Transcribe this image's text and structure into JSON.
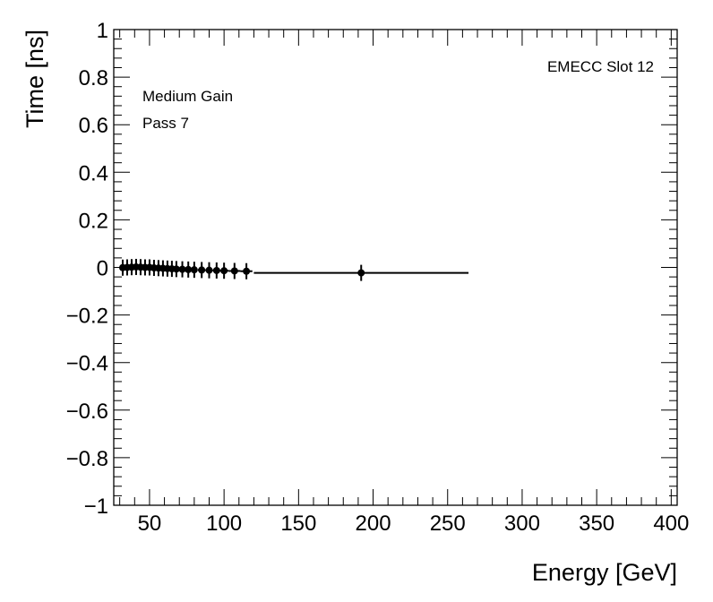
{
  "chart_data": {
    "type": "scatter",
    "title": "",
    "xlabel": "Energy [GeV]",
    "ylabel": "Time [ns]",
    "xlim": [
      26,
      404
    ],
    "ylim": [
      -1,
      1
    ],
    "x_ticks": [
      50,
      100,
      150,
      200,
      250,
      300,
      350,
      400
    ],
    "y_ticks": [
      -1,
      -0.8,
      -0.6,
      -0.4,
      -0.2,
      0,
      0.2,
      0.4,
      0.6,
      0.8,
      1
    ],
    "x_tick_labels": [
      "50",
      "100",
      "150",
      "200",
      "250",
      "300",
      "350",
      "400"
    ],
    "y_tick_labels": [
      "−1",
      "−0.8",
      "−0.6",
      "−0.4",
      "−0.2",
      "0",
      "0.2",
      "0.4",
      "0.6",
      "0.8",
      "1"
    ],
    "annotations": {
      "top_right": "EMECC Slot 12",
      "line1": "Medium Gain",
      "line2": "Pass 7"
    },
    "grid": false,
    "marker_color": "#000000",
    "series": [
      {
        "points": [
          {
            "x": 32,
            "y": -0.001,
            "xerr": 1.5
          },
          {
            "x": 35,
            "y": 0.0,
            "xerr": 1.5
          },
          {
            "x": 38,
            "y": 0.001,
            "xerr": 1.5
          },
          {
            "x": 41,
            "y": 0.002,
            "xerr": 1.5
          },
          {
            "x": 44,
            "y": 0.001,
            "xerr": 1.5
          },
          {
            "x": 47,
            "y": 0.0,
            "xerr": 1.5
          },
          {
            "x": 50,
            "y": 0.0,
            "xerr": 1.5
          },
          {
            "x": 53,
            "y": -0.002,
            "xerr": 1.5
          },
          {
            "x": 56,
            "y": -0.003,
            "xerr": 1.5
          },
          {
            "x": 59,
            "y": -0.004,
            "xerr": 1.5
          },
          {
            "x": 62,
            "y": -0.005,
            "xerr": 1.5
          },
          {
            "x": 65,
            "y": -0.006,
            "xerr": 1.5
          },
          {
            "x": 68,
            "y": -0.007,
            "xerr": 2
          },
          {
            "x": 72,
            "y": -0.008,
            "xerr": 2
          },
          {
            "x": 76,
            "y": -0.009,
            "xerr": 2
          },
          {
            "x": 80,
            "y": -0.01,
            "xerr": 2
          },
          {
            "x": 85,
            "y": -0.011,
            "xerr": 2.5
          },
          {
            "x": 90,
            "y": -0.012,
            "xerr": 2.5
          },
          {
            "x": 95,
            "y": -0.013,
            "xerr": 2.5
          },
          {
            "x": 100,
            "y": -0.014,
            "xerr": 3
          },
          {
            "x": 107,
            "y": -0.015,
            "xerr": 4
          },
          {
            "x": 115,
            "y": -0.016,
            "xerr": 4
          },
          {
            "x": 192,
            "y": -0.023,
            "xerr": 72
          }
        ]
      }
    ]
  }
}
